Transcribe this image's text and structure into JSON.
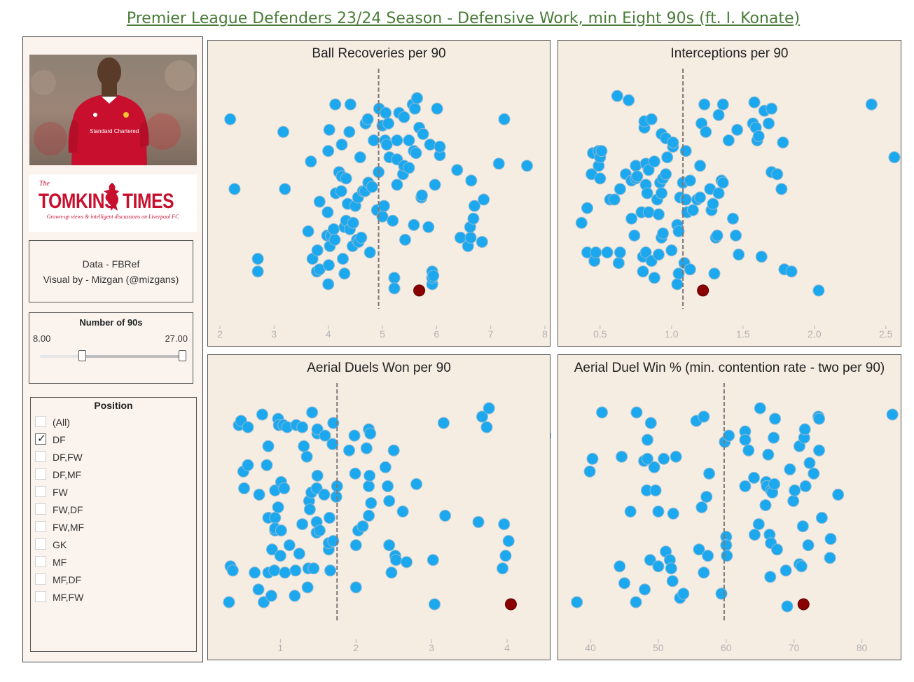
{
  "header": {
    "title": "Premier League Defenders 23/24 Season - Defensive Work, min Eight 90s (ft. I. Konate)"
  },
  "sidebar": {
    "photo": {
      "shirt_text": "Standard Chartered"
    },
    "logo": {
      "the": "The",
      "word_left": "TOMKINS",
      "word_right": "TIMES",
      "tagline": "Grown-up views & intelligent discussions on Liverpool FC"
    },
    "credits": {
      "line1": "Data - FBRef",
      "line2": "Visual by - Mizgan (@mizgans)"
    },
    "slider": {
      "title": "Number of 90s",
      "min_label": "8.00",
      "max_label": "27.00",
      "selected_min": 8,
      "selected_max": 27,
      "range_min": 0,
      "range_max": 28
    },
    "position_filter": {
      "title": "Position",
      "options": [
        {
          "label": "(All)",
          "checked": false
        },
        {
          "label": "DF",
          "checked": true
        },
        {
          "label": "DF,FW",
          "checked": false
        },
        {
          "label": "DF,MF",
          "checked": false
        },
        {
          "label": "FW",
          "checked": false
        },
        {
          "label": "FW,DF",
          "checked": false
        },
        {
          "label": "FW,MF",
          "checked": false
        },
        {
          "label": "GK",
          "checked": false
        },
        {
          "label": "MF",
          "checked": false
        },
        {
          "label": "MF,DF",
          "checked": false
        },
        {
          "label": "MF,FW",
          "checked": false
        }
      ]
    }
  },
  "colors": {
    "point": "#1ba8ee",
    "point_stroke": "#8fb8d0",
    "highlight": "#8b0000",
    "panel_bg": "#f5ece2",
    "title": "#4a7c38",
    "mean_line": "#7a7a7a"
  },
  "chart_data": [
    {
      "type": "scatter",
      "title": "Ball Recoveries per 90",
      "xlim": [
        2,
        8
      ],
      "xticks": [
        "2",
        "3",
        "4",
        "5",
        "6",
        "7",
        "8"
      ],
      "mean": 4.93,
      "highlight": {
        "x": 5.68,
        "y": 0.05
      },
      "x": [
        2.19,
        2.27,
        2.7,
        2.7,
        3.17,
        3.2,
        3.63,
        3.68,
        3.71,
        3.79,
        3.8,
        3.84,
        3.84,
        3.98,
        3.99,
        4.0,
        4.0,
        4.01,
        4.02,
        4.03,
        4.05,
        4.1,
        4.12,
        4.13,
        4.14,
        4.2,
        4.24,
        4.25,
        4.25,
        4.27,
        4.3,
        4.3,
        4.33,
        4.33,
        4.36,
        4.39,
        4.4,
        4.41,
        4.45,
        4.46,
        4.5,
        4.53,
        4.55,
        4.56,
        4.59,
        4.61,
        4.64,
        4.68,
        4.69,
        4.73,
        4.74,
        4.77,
        4.81,
        4.84,
        4.9,
        4.93,
        4.94,
        5.0,
        5.0,
        5.03,
        5.05,
        5.06,
        5.08,
        5.11,
        5.13,
        5.19,
        5.22,
        5.22,
        5.27,
        5.27,
        5.27,
        5.31,
        5.38,
        5.4,
        5.4,
        5.42,
        5.49,
        5.49,
        5.56,
        5.58,
        5.58,
        5.6,
        5.62,
        5.64,
        5.68,
        5.72,
        5.73,
        5.75,
        5.85,
        5.88,
        5.92,
        5.92,
        5.92,
        5.94,
        5.97,
        6.01,
        6.06,
        6.06,
        6.38,
        6.44,
        6.58,
        6.62,
        6.63,
        6.64,
        6.68,
        6.7,
        6.84,
        6.87,
        7.15,
        7.25,
        7.67
      ],
      "y": [
        0.86,
        0.53,
        0.14,
        0.2,
        0.8,
        0.53,
        0.33,
        0.66,
        0.2,
        0.14,
        0.24,
        0.15,
        0.47,
        0.31,
        0.42,
        0.08,
        0.71,
        0.17,
        0.81,
        0.26,
        0.31,
        0.34,
        0.29,
        0.93,
        0.51,
        0.61,
        0.52,
        0.59,
        0.74,
        0.2,
        0.13,
        0.35,
        0.58,
        0.38,
        0.46,
        0.8,
        0.34,
        0.93,
        0.26,
        0.37,
        0.45,
        0.29,
        0.49,
        0.28,
        0.68,
        0.3,
        0.52,
        0.52,
        0.84,
        0.86,
        0.56,
        0.23,
        0.54,
        0.76,
        0.43,
        0.61,
        0.91,
        0.4,
        0.83,
        0.45,
        0.76,
        0.89,
        0.74,
        0.84,
        0.68,
        0.38,
        0.11,
        0.06,
        0.55,
        0.67,
        0.76,
        0.89,
        0.6,
        0.87,
        0.64,
        0.29,
        0.76,
        0.63,
        0.93,
        0.36,
        0.71,
        0.91,
        0.7,
        0.96,
        0.82,
        0.49,
        0.5,
        0.79,
        0.35,
        0.74,
        0.08,
        0.11,
        0.14,
        0.12,
        0.55,
        0.91,
        0.69,
        0.73,
        0.62,
        0.3,
        0.26,
        0.35,
        0.3,
        0.57,
        0.39,
        0.45,
        0.28,
        0.48,
        0.65,
        0.86,
        0.64
      ]
    },
    {
      "type": "scatter",
      "title": "Interceptions per 90",
      "xlim": [
        0.29,
        2.57
      ],
      "xticks": [
        "0.5",
        "1.0",
        "1.5",
        "2.0",
        "2.5"
      ],
      "mean": 1.08,
      "highlight": {
        "x": 1.22,
        "y": 0.05
      },
      "x": [
        0.37,
        0.41,
        0.41,
        0.44,
        0.45,
        0.46,
        0.47,
        0.49,
        0.49,
        0.5,
        0.5,
        0.51,
        0.55,
        0.57,
        0.6,
        0.62,
        0.63,
        0.64,
        0.64,
        0.68,
        0.7,
        0.72,
        0.72,
        0.74,
        0.75,
        0.75,
        0.76,
        0.79,
        0.8,
        0.8,
        0.81,
        0.81,
        0.82,
        0.82,
        0.82,
        0.83,
        0.84,
        0.84,
        0.86,
        0.86,
        0.88,
        0.88,
        0.9,
        0.91,
        0.91,
        0.92,
        0.93,
        0.93,
        0.93,
        0.94,
        0.94,
        0.96,
        0.96,
        0.97,
        1.0,
        1.01,
        1.01,
        1.04,
        1.04,
        1.05,
        1.05,
        1.06,
        1.08,
        1.09,
        1.1,
        1.1,
        1.11,
        1.13,
        1.13,
        1.15,
        1.18,
        1.2,
        1.2,
        1.21,
        1.23,
        1.24,
        1.27,
        1.28,
        1.29,
        1.3,
        1.31,
        1.32,
        1.33,
        1.33,
        1.35,
        1.36,
        1.36,
        1.4,
        1.43,
        1.45,
        1.46,
        1.47,
        1.57,
        1.58,
        1.59,
        1.6,
        1.61,
        1.63,
        1.65,
        1.68,
        1.7,
        1.7,
        1.74,
        1.77,
        1.78,
        1.79,
        1.84,
        2.03,
        2.4,
        2.56
      ],
      "y": [
        0.37,
        0.44,
        0.23,
        0.6,
        0.7,
        0.19,
        0.23,
        0.71,
        0.64,
        0.58,
        0.68,
        0.71,
        0.23,
        0.48,
        0.48,
        0.97,
        0.18,
        0.23,
        0.53,
        0.6,
        0.95,
        0.57,
        0.39,
        0.31,
        0.58,
        0.64,
        0.59,
        0.42,
        0.14,
        0.21,
        0.82,
        0.85,
        0.23,
        0.65,
        0.55,
        0.51,
        0.42,
        0.62,
        0.19,
        0.86,
        0.11,
        0.66,
        0.48,
        0.22,
        0.41,
        0.56,
        0.79,
        0.3,
        0.51,
        0.58,
        0.32,
        0.77,
        0.6,
        0.68,
        0.24,
        0.73,
        0.75,
        0.08,
        0.36,
        0.13,
        0.33,
        0.49,
        0.56,
        0.18,
        0.48,
        0.71,
        0.42,
        0.57,
        0.15,
        0.43,
        0.48,
        0.49,
        0.64,
        0.84,
        0.93,
        0.8,
        0.53,
        0.43,
        0.46,
        0.13,
        0.3,
        0.31,
        0.51,
        0.88,
        0.57,
        0.93,
        0.56,
        0.76,
        0.39,
        0.31,
        0.81,
        0.22,
        0.84,
        0.94,
        0.82,
        0.76,
        0.78,
        0.21,
        0.9,
        0.84,
        0.61,
        0.91,
        0.6,
        0.53,
        0.75,
        0.15,
        0.14,
        0.05,
        0.93,
        0.68
      ]
    },
    {
      "type": "scatter",
      "title": "Aerial Duels Won per 90",
      "xlim": [
        0.2,
        4.5
      ],
      "xticks": [
        "1",
        "2",
        "3",
        "4"
      ],
      "mean": 1.75,
      "highlight": {
        "x": 4.05,
        "y": 0.05
      },
      "x": [
        0.32,
        0.34,
        0.37,
        0.45,
        0.48,
        0.51,
        0.52,
        0.57,
        0.57,
        0.66,
        0.71,
        0.72,
        0.76,
        0.78,
        0.82,
        0.84,
        0.84,
        0.84,
        0.88,
        0.89,
        0.92,
        0.93,
        0.93,
        0.93,
        0.93,
        0.97,
        0.97,
        0.98,
        1.0,
        1.01,
        1.01,
        1.04,
        1.05,
        1.06,
        1.09,
        1.12,
        1.19,
        1.2,
        1.21,
        1.25,
        1.29,
        1.29,
        1.31,
        1.35,
        1.36,
        1.37,
        1.38,
        1.39,
        1.41,
        1.42,
        1.44,
        1.48,
        1.48,
        1.48,
        1.49,
        1.49,
        1.49,
        1.52,
        1.58,
        1.59,
        1.64,
        1.64,
        1.65,
        1.66,
        1.69,
        1.7,
        1.7,
        1.74,
        1.75,
        1.91,
        1.98,
        1.99,
        2.0,
        2.0,
        2.03,
        2.09,
        2.14,
        2.17,
        2.17,
        2.17,
        2.18,
        2.19,
        2.2,
        2.39,
        2.42,
        2.44,
        2.44,
        2.47,
        2.5,
        2.52,
        2.53,
        2.62,
        2.67,
        2.8,
        3.02,
        3.04,
        3.16,
        3.18,
        3.62,
        3.67,
        3.73,
        3.76,
        3.94,
        3.96,
        3.98,
        4.02,
        4.65
      ],
      "y": [
        0.06,
        0.23,
        0.21,
        0.9,
        0.92,
        0.68,
        0.6,
        0.89,
        0.71,
        0.2,
        0.12,
        0.57,
        0.95,
        0.06,
        0.71,
        0.2,
        0.8,
        0.46,
        0.09,
        0.31,
        0.21,
        0.59,
        0.46,
        0.4,
        0.41,
        0.93,
        0.51,
        0.9,
        0.28,
        0.63,
        0.4,
        0.9,
        0.6,
        0.2,
        0.89,
        0.33,
        0.09,
        0.21,
        0.9,
        0.29,
        0.89,
        0.43,
        0.8,
        0.75,
        0.13,
        0.22,
        0.54,
        0.5,
        0.58,
        0.96,
        0.22,
        0.6,
        0.44,
        0.39,
        0.86,
        0.66,
        0.88,
        0.4,
        0.57,
        0.85,
        0.31,
        0.34,
        0.46,
        0.21,
        0.81,
        0.35,
        0.91,
        0.56,
        0.61,
        0.78,
        0.85,
        0.67,
        0.33,
        0.13,
        0.4,
        0.42,
        0.79,
        0.47,
        0.88,
        0.61,
        0.66,
        0.86,
        0.53,
        0.7,
        0.61,
        0.33,
        0.54,
        0.2,
        0.78,
        0.28,
        0.26,
        0.49,
        0.25,
        0.62,
        0.26,
        0.05,
        0.91,
        0.47,
        0.44,
        0.94,
        0.89,
        0.98,
        0.22,
        0.43,
        0.28,
        0.35,
        0.85
      ]
    },
    {
      "type": "scatter",
      "title": "Aerial Duel Win % (min. contention rate - two per 90)",
      "xlim": [
        37,
        85
      ],
      "xticks": [
        "40",
        "50",
        "60",
        "70",
        "80"
      ],
      "mean": 59.7,
      "highlight": {
        "x": 71.4,
        "y": 0.05
      },
      "x": [
        38.0,
        39.9,
        40.3,
        41.7,
        44.3,
        44.6,
        45.0,
        45.9,
        46.7,
        46.8,
        47.9,
        48.0,
        48.3,
        48.4,
        48.4,
        48.8,
        48.9,
        49.4,
        49.6,
        50.0,
        50.0,
        50.8,
        51.1,
        51.7,
        51.9,
        52.1,
        52.2,
        52.6,
        53.2,
        53.7,
        55.6,
        56.0,
        56.4,
        56.7,
        56.7,
        57.1,
        57.3,
        57.5,
        59.3,
        59.8,
        60.0,
        60.0,
        60.1,
        60.4,
        62.8,
        62.8,
        62.8,
        63.3,
        64.1,
        64.2,
        64.8,
        65.0,
        65.8,
        65.9,
        66.0,
        66.2,
        66.4,
        66.5,
        66.6,
        66.6,
        66.8,
        67.0,
        67.1,
        67.2,
        67.5,
        68.8,
        69.0,
        69.4,
        69.9,
        70.1,
        70.8,
        70.8,
        71.1,
        71.3,
        71.5,
        71.6,
        71.7,
        72.1,
        72.3,
        72.9,
        73.6,
        73.7,
        73.7,
        74.1,
        75.3,
        75.4,
        76.5,
        84.5
      ],
      "y": [
        0.06,
        0.68,
        0.74,
        0.96,
        0.23,
        0.75,
        0.15,
        0.49,
        0.06,
        0.96,
        0.73,
        0.12,
        0.59,
        0.83,
        0.74,
        0.26,
        0.91,
        0.7,
        0.59,
        0.49,
        0.23,
        0.74,
        0.3,
        0.26,
        0.22,
        0.16,
        0.48,
        0.75,
        0.08,
        0.1,
        0.92,
        0.31,
        0.51,
        0.2,
        0.94,
        0.56,
        0.28,
        0.67,
        0.1,
        0.82,
        0.37,
        0.33,
        0.28,
        0.85,
        0.87,
        0.83,
        0.61,
        0.78,
        0.65,
        0.38,
        0.43,
        0.98,
        0.52,
        0.63,
        0.61,
        0.76,
        0.38,
        0.18,
        0.34,
        0.59,
        0.58,
        0.84,
        0.62,
        0.93,
        0.31,
        0.21,
        0.04,
        0.69,
        0.54,
        0.59,
        0.24,
        0.8,
        0.23,
        0.42,
        0.84,
        0.88,
        0.61,
        0.33,
        0.72,
        0.67,
        0.94,
        0.93,
        0.78,
        0.46,
        0.27,
        0.36,
        0.57,
        0.95
      ]
    }
  ]
}
